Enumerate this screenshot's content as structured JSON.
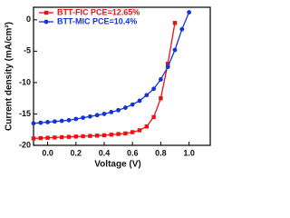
{
  "chart_data": {
    "type": "line",
    "x_label": "Voltage (V)",
    "y_label": "Current density (mA/cm²)",
    "x": [
      -0.1,
      -0.05,
      0.0,
      0.05,
      0.1,
      0.15,
      0.2,
      0.25,
      0.3,
      0.35,
      0.4,
      0.45,
      0.5,
      0.55,
      0.6,
      0.65,
      0.7,
      0.75,
      0.8,
      0.85,
      0.9,
      0.95,
      1.0
    ],
    "series": [
      {
        "name": "BTT-FIC PCE=12.65%",
        "color": "#ee1111",
        "marker": "square",
        "values": [
          -18.9,
          -18.85,
          -18.8,
          -18.75,
          -18.7,
          -18.65,
          -18.6,
          -18.55,
          -18.5,
          -18.45,
          -18.4,
          -18.3,
          -18.2,
          -18.1,
          -17.9,
          -17.6,
          -17.0,
          -15.5,
          -12.5,
          -7.0,
          -0.5,
          null,
          null
        ]
      },
      {
        "name": "BTT-MIC PCE=10.4%",
        "color": "#1133dd",
        "marker": "circle",
        "values": [
          -16.5,
          -16.4,
          -16.3,
          -16.2,
          -16.1,
          -16.0,
          -15.8,
          -15.6,
          -15.4,
          -15.2,
          -15.0,
          -14.7,
          -14.4,
          -14.0,
          -13.5,
          -12.9,
          -12.0,
          -11.0,
          -9.5,
          -7.5,
          -4.8,
          -1.5,
          1.2
        ]
      }
    ],
    "xlim": [
      -0.1,
      1.15
    ],
    "ylim": [
      -20,
      2
    ],
    "xticks": [
      {
        "value": 0.0,
        "label": "0.0"
      },
      {
        "value": 0.2,
        "label": "0.2"
      },
      {
        "value": 0.4,
        "label": "0.4"
      },
      {
        "value": 0.6,
        "label": "0.6"
      },
      {
        "value": 0.8,
        "label": "0.8"
      },
      {
        "value": 1.0,
        "label": "1.0"
      }
    ],
    "yticks": [
      0,
      -5,
      -10,
      -15,
      -20
    ],
    "legend": "upper-left"
  }
}
